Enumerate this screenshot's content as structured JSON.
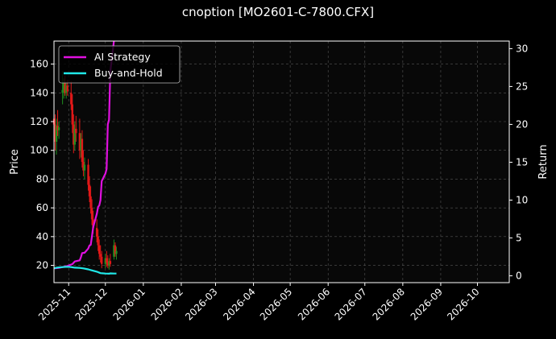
{
  "chart_data": {
    "type": "line",
    "title": "cnoption [MO2601-C-7800.CFX]",
    "ylabel": "Price",
    "y2label": "Return",
    "ylim": [
      8,
      176
    ],
    "y2lim": [
      -0.9,
      31
    ],
    "yticks": [
      20,
      40,
      60,
      80,
      100,
      120,
      140,
      160
    ],
    "y2ticks": [
      0,
      5,
      10,
      15,
      20,
      25,
      30
    ],
    "xlim": [
      "2025-10-20",
      "2026-10-27"
    ],
    "xtick_labels": [
      "2025-11",
      "2025-12",
      "2026-01",
      "2026-02",
      "2026-03",
      "2026-04",
      "2026-05",
      "2026-06",
      "2026-07",
      "2026-08",
      "2026-09",
      "2026-10"
    ],
    "xtick_dates": [
      "2025-11-01",
      "2025-12-01",
      "2026-01-01",
      "2026-02-01",
      "2026-03-01",
      "2026-04-01",
      "2026-05-01",
      "2026-06-01",
      "2026-07-01",
      "2026-08-01",
      "2026-09-01",
      "2026-10-01"
    ],
    "grid": true,
    "legend_position": "top-left",
    "candles": [
      {
        "date": "2025-10-20",
        "open": 122,
        "high": 130,
        "low": 112,
        "close": 118
      },
      {
        "date": "2025-10-21",
        "open": 118,
        "high": 125,
        "low": 100,
        "close": 106
      },
      {
        "date": "2025-10-22",
        "open": 106,
        "high": 122,
        "low": 97,
        "close": 117
      },
      {
        "date": "2025-10-23",
        "open": 117,
        "high": 128,
        "low": 110,
        "close": 114
      },
      {
        "date": "2025-10-24",
        "open": 114,
        "high": 120,
        "low": 108,
        "close": 116
      },
      {
        "date": "2025-10-27",
        "open": 140,
        "high": 155,
        "low": 132,
        "close": 142
      },
      {
        "date": "2025-10-28",
        "open": 142,
        "high": 150,
        "low": 136,
        "close": 147
      },
      {
        "date": "2025-10-29",
        "open": 147,
        "high": 152,
        "low": 138,
        "close": 140
      },
      {
        "date": "2025-10-30",
        "open": 140,
        "high": 147,
        "low": 136,
        "close": 145
      },
      {
        "date": "2025-10-31",
        "open": 145,
        "high": 149,
        "low": 138,
        "close": 141
      },
      {
        "date": "2025-11-03",
        "open": 140,
        "high": 148,
        "low": 128,
        "close": 132
      },
      {
        "date": "2025-11-04",
        "open": 132,
        "high": 139,
        "low": 112,
        "close": 118
      },
      {
        "date": "2025-11-05",
        "open": 118,
        "high": 125,
        "low": 98,
        "close": 104
      },
      {
        "date": "2025-11-06",
        "open": 104,
        "high": 120,
        "low": 100,
        "close": 115
      },
      {
        "date": "2025-11-07",
        "open": 115,
        "high": 124,
        "low": 106,
        "close": 112
      },
      {
        "date": "2025-11-10",
        "open": 112,
        "high": 122,
        "low": 94,
        "close": 100
      },
      {
        "date": "2025-11-11",
        "open": 100,
        "high": 112,
        "low": 95,
        "close": 108
      },
      {
        "date": "2025-11-12",
        "open": 108,
        "high": 114,
        "low": 88,
        "close": 92
      },
      {
        "date": "2025-11-13",
        "open": 92,
        "high": 100,
        "low": 82,
        "close": 86
      },
      {
        "date": "2025-11-14",
        "open": 86,
        "high": 95,
        "low": 80,
        "close": 90
      },
      {
        "date": "2025-11-17",
        "open": 90,
        "high": 94,
        "low": 72,
        "close": 76
      },
      {
        "date": "2025-11-18",
        "open": 76,
        "high": 82,
        "low": 64,
        "close": 68
      },
      {
        "date": "2025-11-19",
        "open": 68,
        "high": 75,
        "low": 56,
        "close": 60
      },
      {
        "date": "2025-11-20",
        "open": 60,
        "high": 66,
        "low": 48,
        "close": 52
      },
      {
        "date": "2025-11-21",
        "open": 52,
        "high": 58,
        "low": 42,
        "close": 46
      },
      {
        "date": "2025-11-24",
        "open": 46,
        "high": 52,
        "low": 36,
        "close": 40
      },
      {
        "date": "2025-11-25",
        "open": 40,
        "high": 45,
        "low": 30,
        "close": 34
      },
      {
        "date": "2025-11-26",
        "open": 34,
        "high": 38,
        "low": 24,
        "close": 28
      },
      {
        "date": "2025-11-27",
        "open": 28,
        "high": 34,
        "low": 22,
        "close": 26
      },
      {
        "date": "2025-11-28",
        "open": 26,
        "high": 30,
        "low": 18,
        "close": 21
      },
      {
        "date": "2025-12-01",
        "open": 21,
        "high": 28,
        "low": 18,
        "close": 25
      },
      {
        "date": "2025-12-02",
        "open": 25,
        "high": 30,
        "low": 19,
        "close": 22
      },
      {
        "date": "2025-12-03",
        "open": 22,
        "high": 27,
        "low": 18,
        "close": 20
      },
      {
        "date": "2025-12-04",
        "open": 20,
        "high": 25,
        "low": 17,
        "close": 23
      },
      {
        "date": "2025-12-05",
        "open": 23,
        "high": 28,
        "low": 19,
        "close": 21
      },
      {
        "date": "2025-12-08",
        "open": 26,
        "high": 38,
        "low": 24,
        "close": 34
      },
      {
        "date": "2025-12-09",
        "open": 34,
        "high": 36,
        "low": 26,
        "close": 28
      },
      {
        "date": "2025-12-10",
        "open": 28,
        "high": 33,
        "low": 24,
        "close": 30
      }
    ],
    "series": [
      {
        "name": "AI Strategy",
        "color": "#e010e0",
        "axis": "right",
        "points": [
          [
            "2025-10-20",
            0.98
          ],
          [
            "2025-10-24",
            1.05
          ],
          [
            "2025-10-27",
            1.15
          ],
          [
            "2025-10-31",
            1.3
          ],
          [
            "2025-11-04",
            1.55
          ],
          [
            "2025-11-06",
            1.9
          ],
          [
            "2025-11-10",
            2.05
          ],
          [
            "2025-11-11",
            2.45
          ],
          [
            "2025-11-12",
            3.0
          ],
          [
            "2025-11-14",
            3.05
          ],
          [
            "2025-11-17",
            3.6
          ],
          [
            "2025-11-18",
            4.0
          ],
          [
            "2025-11-19",
            4.1
          ],
          [
            "2025-11-20",
            5.2
          ],
          [
            "2025-11-21",
            6.4
          ],
          [
            "2025-11-24",
            8.2
          ],
          [
            "2025-11-25",
            9.1
          ],
          [
            "2025-11-26",
            9.3
          ],
          [
            "2025-11-27",
            10.0
          ],
          [
            "2025-11-28",
            12.5
          ],
          [
            "2025-12-01",
            13.5
          ],
          [
            "2025-12-02",
            14.1
          ],
          [
            "2025-12-03",
            20.0
          ],
          [
            "2025-12-04",
            20.6
          ],
          [
            "2025-12-05",
            27.0
          ],
          [
            "2025-12-08",
            31.0
          ]
        ]
      },
      {
        "name": "Buy-and-Hold",
        "color": "#20e8e8",
        "axis": "right",
        "points": [
          [
            "2025-10-20",
            1.0
          ],
          [
            "2025-10-23",
            1.1
          ],
          [
            "2025-10-27",
            1.15
          ],
          [
            "2025-10-31",
            1.2
          ],
          [
            "2025-11-03",
            1.15
          ],
          [
            "2025-11-06",
            1.08
          ],
          [
            "2025-11-10",
            1.05
          ],
          [
            "2025-11-13",
            0.98
          ],
          [
            "2025-11-17",
            0.85
          ],
          [
            "2025-11-20",
            0.72
          ],
          [
            "2025-11-24",
            0.55
          ],
          [
            "2025-11-27",
            0.35
          ],
          [
            "2025-12-01",
            0.3
          ],
          [
            "2025-12-04",
            0.28
          ],
          [
            "2025-12-05",
            0.32
          ],
          [
            "2025-12-08",
            0.3
          ],
          [
            "2025-12-10",
            0.3
          ]
        ]
      }
    ]
  }
}
